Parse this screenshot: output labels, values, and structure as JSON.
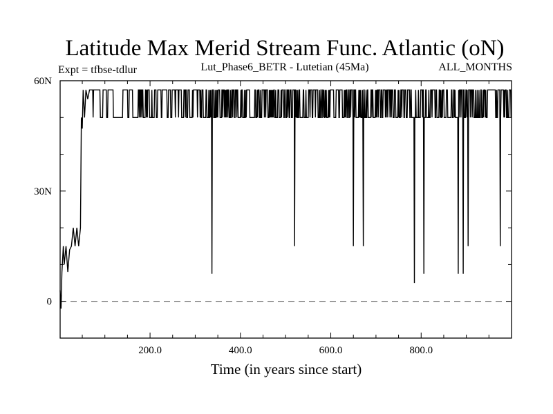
{
  "chart_data": {
    "type": "line",
    "title": "Latitude Max Merid Stream Func. Atlantic (oN)",
    "subtitle_left": "Expt = tfbse-tdlur",
    "subtitle_center": "Lut_Phase6_BETR - Lutetian (45Ma)",
    "subtitle_right": "ALL_MONTHS",
    "xlabel": "Time (in years since start)",
    "ylabel": "",
    "xlim": [
      1,
      1000
    ],
    "ylim": [
      -10,
      60
    ],
    "x_ticks": [
      {
        "value": 200,
        "label": "200.0"
      },
      {
        "value": 400,
        "label": "400.0"
      },
      {
        "value": 600,
        "label": "600.0"
      },
      {
        "value": 800,
        "label": "800.0"
      }
    ],
    "y_ticks": [
      {
        "value": 60,
        "label": "60N"
      },
      {
        "value": 30,
        "label": "30N"
      },
      {
        "value": 0,
        "label": "0"
      }
    ],
    "reference_line": {
      "y": 0,
      "style": "dashed"
    },
    "grid": false,
    "line_color": "#000000",
    "series": [
      {
        "upper_level": 57.5,
        "lower_level": 50,
        "spin_up": [
          [
            1,
            3
          ],
          [
            3,
            -2
          ],
          [
            5,
            8
          ],
          [
            8,
            15
          ],
          [
            10,
            10
          ],
          [
            14,
            15
          ],
          [
            18,
            8
          ],
          [
            22,
            14
          ],
          [
            26,
            15
          ],
          [
            30,
            20
          ],
          [
            34,
            15
          ],
          [
            38,
            20
          ],
          [
            42,
            15
          ],
          [
            46,
            20
          ],
          [
            48,
            50
          ],
          [
            50,
            47
          ],
          [
            52,
            57.5
          ],
          [
            55,
            50
          ],
          [
            58,
            57.5
          ],
          [
            62,
            55
          ],
          [
            66,
            57.5
          ]
        ],
        "dips": [
          [
            337,
            7.5
          ],
          [
            520,
            15
          ],
          [
            650,
            15
          ],
          [
            672,
            15
          ],
          [
            785,
            5
          ],
          [
            806,
            7.5
          ],
          [
            882,
            7.5
          ],
          [
            893,
            7.5
          ],
          [
            904,
            15
          ],
          [
            975,
            15
          ]
        ]
      }
    ]
  }
}
